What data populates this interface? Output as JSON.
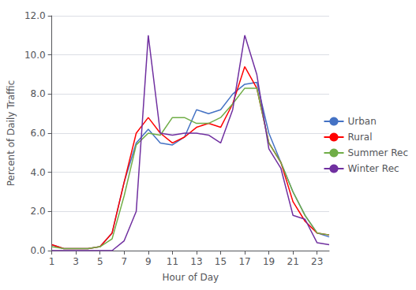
{
  "chart_data": {
    "type": "line",
    "x": [
      1,
      2,
      3,
      4,
      5,
      6,
      7,
      8,
      9,
      10,
      11,
      12,
      13,
      14,
      15,
      16,
      17,
      18,
      19,
      20,
      21,
      22,
      23,
      24
    ],
    "xlabel": "Hour of Day",
    "ylabel": "Percent of Daily Traffic",
    "xlim": [
      1,
      24
    ],
    "xticks": [
      1,
      3,
      5,
      7,
      9,
      11,
      13,
      15,
      17,
      19,
      21,
      23
    ],
    "ylim": [
      0.0,
      12.0
    ],
    "yticks": [
      {
        "value": 0,
        "label": "0.0"
      },
      {
        "value": 2,
        "label": "2.0"
      },
      {
        "value": 4,
        "label": "4.0"
      },
      {
        "value": 6,
        "label": "6.0"
      },
      {
        "value": 8,
        "label": "8.0"
      },
      {
        "value": 10,
        "label": "10.0"
      },
      {
        "value": 12,
        "label": "12.0"
      }
    ],
    "grid": true,
    "legend": "right",
    "series": [
      {
        "name": "Urban",
        "color": "#4472C4",
        "values": [
          0.3,
          0.1,
          0.1,
          0.1,
          0.2,
          0.9,
          3.5,
          5.5,
          6.2,
          5.5,
          5.4,
          5.8,
          7.2,
          7.0,
          7.2,
          8.0,
          8.5,
          8.6,
          6.0,
          4.5,
          3.0,
          1.8,
          0.9,
          0.7
        ]
      },
      {
        "name": "Rural",
        "color": "#FF0000",
        "values": [
          0.3,
          0.1,
          0.1,
          0.1,
          0.2,
          0.9,
          3.5,
          6.0,
          6.8,
          6.0,
          5.5,
          5.8,
          6.3,
          6.5,
          6.3,
          7.5,
          9.4,
          8.3,
          5.5,
          4.5,
          2.5,
          1.5,
          0.9,
          0.8
        ]
      },
      {
        "name": "Summer Rec",
        "color": "#70AD47",
        "values": [
          0.2,
          0.1,
          0.1,
          0.1,
          0.2,
          0.6,
          2.8,
          5.4,
          6.0,
          5.9,
          6.8,
          6.8,
          6.5,
          6.5,
          6.8,
          7.5,
          8.3,
          8.3,
          5.5,
          4.5,
          3.0,
          1.8,
          0.9,
          0.8
        ]
      },
      {
        "name": "Winter Rec",
        "color": "#7030A0",
        "values": [
          0.0,
          0.0,
          0.0,
          0.0,
          0.0,
          0.0,
          0.5,
          2.0,
          11.0,
          6.0,
          5.9,
          6.0,
          6.0,
          5.9,
          5.5,
          7.2,
          11.0,
          9.0,
          5.2,
          4.2,
          1.8,
          1.6,
          0.4,
          0.3
        ]
      }
    ]
  }
}
